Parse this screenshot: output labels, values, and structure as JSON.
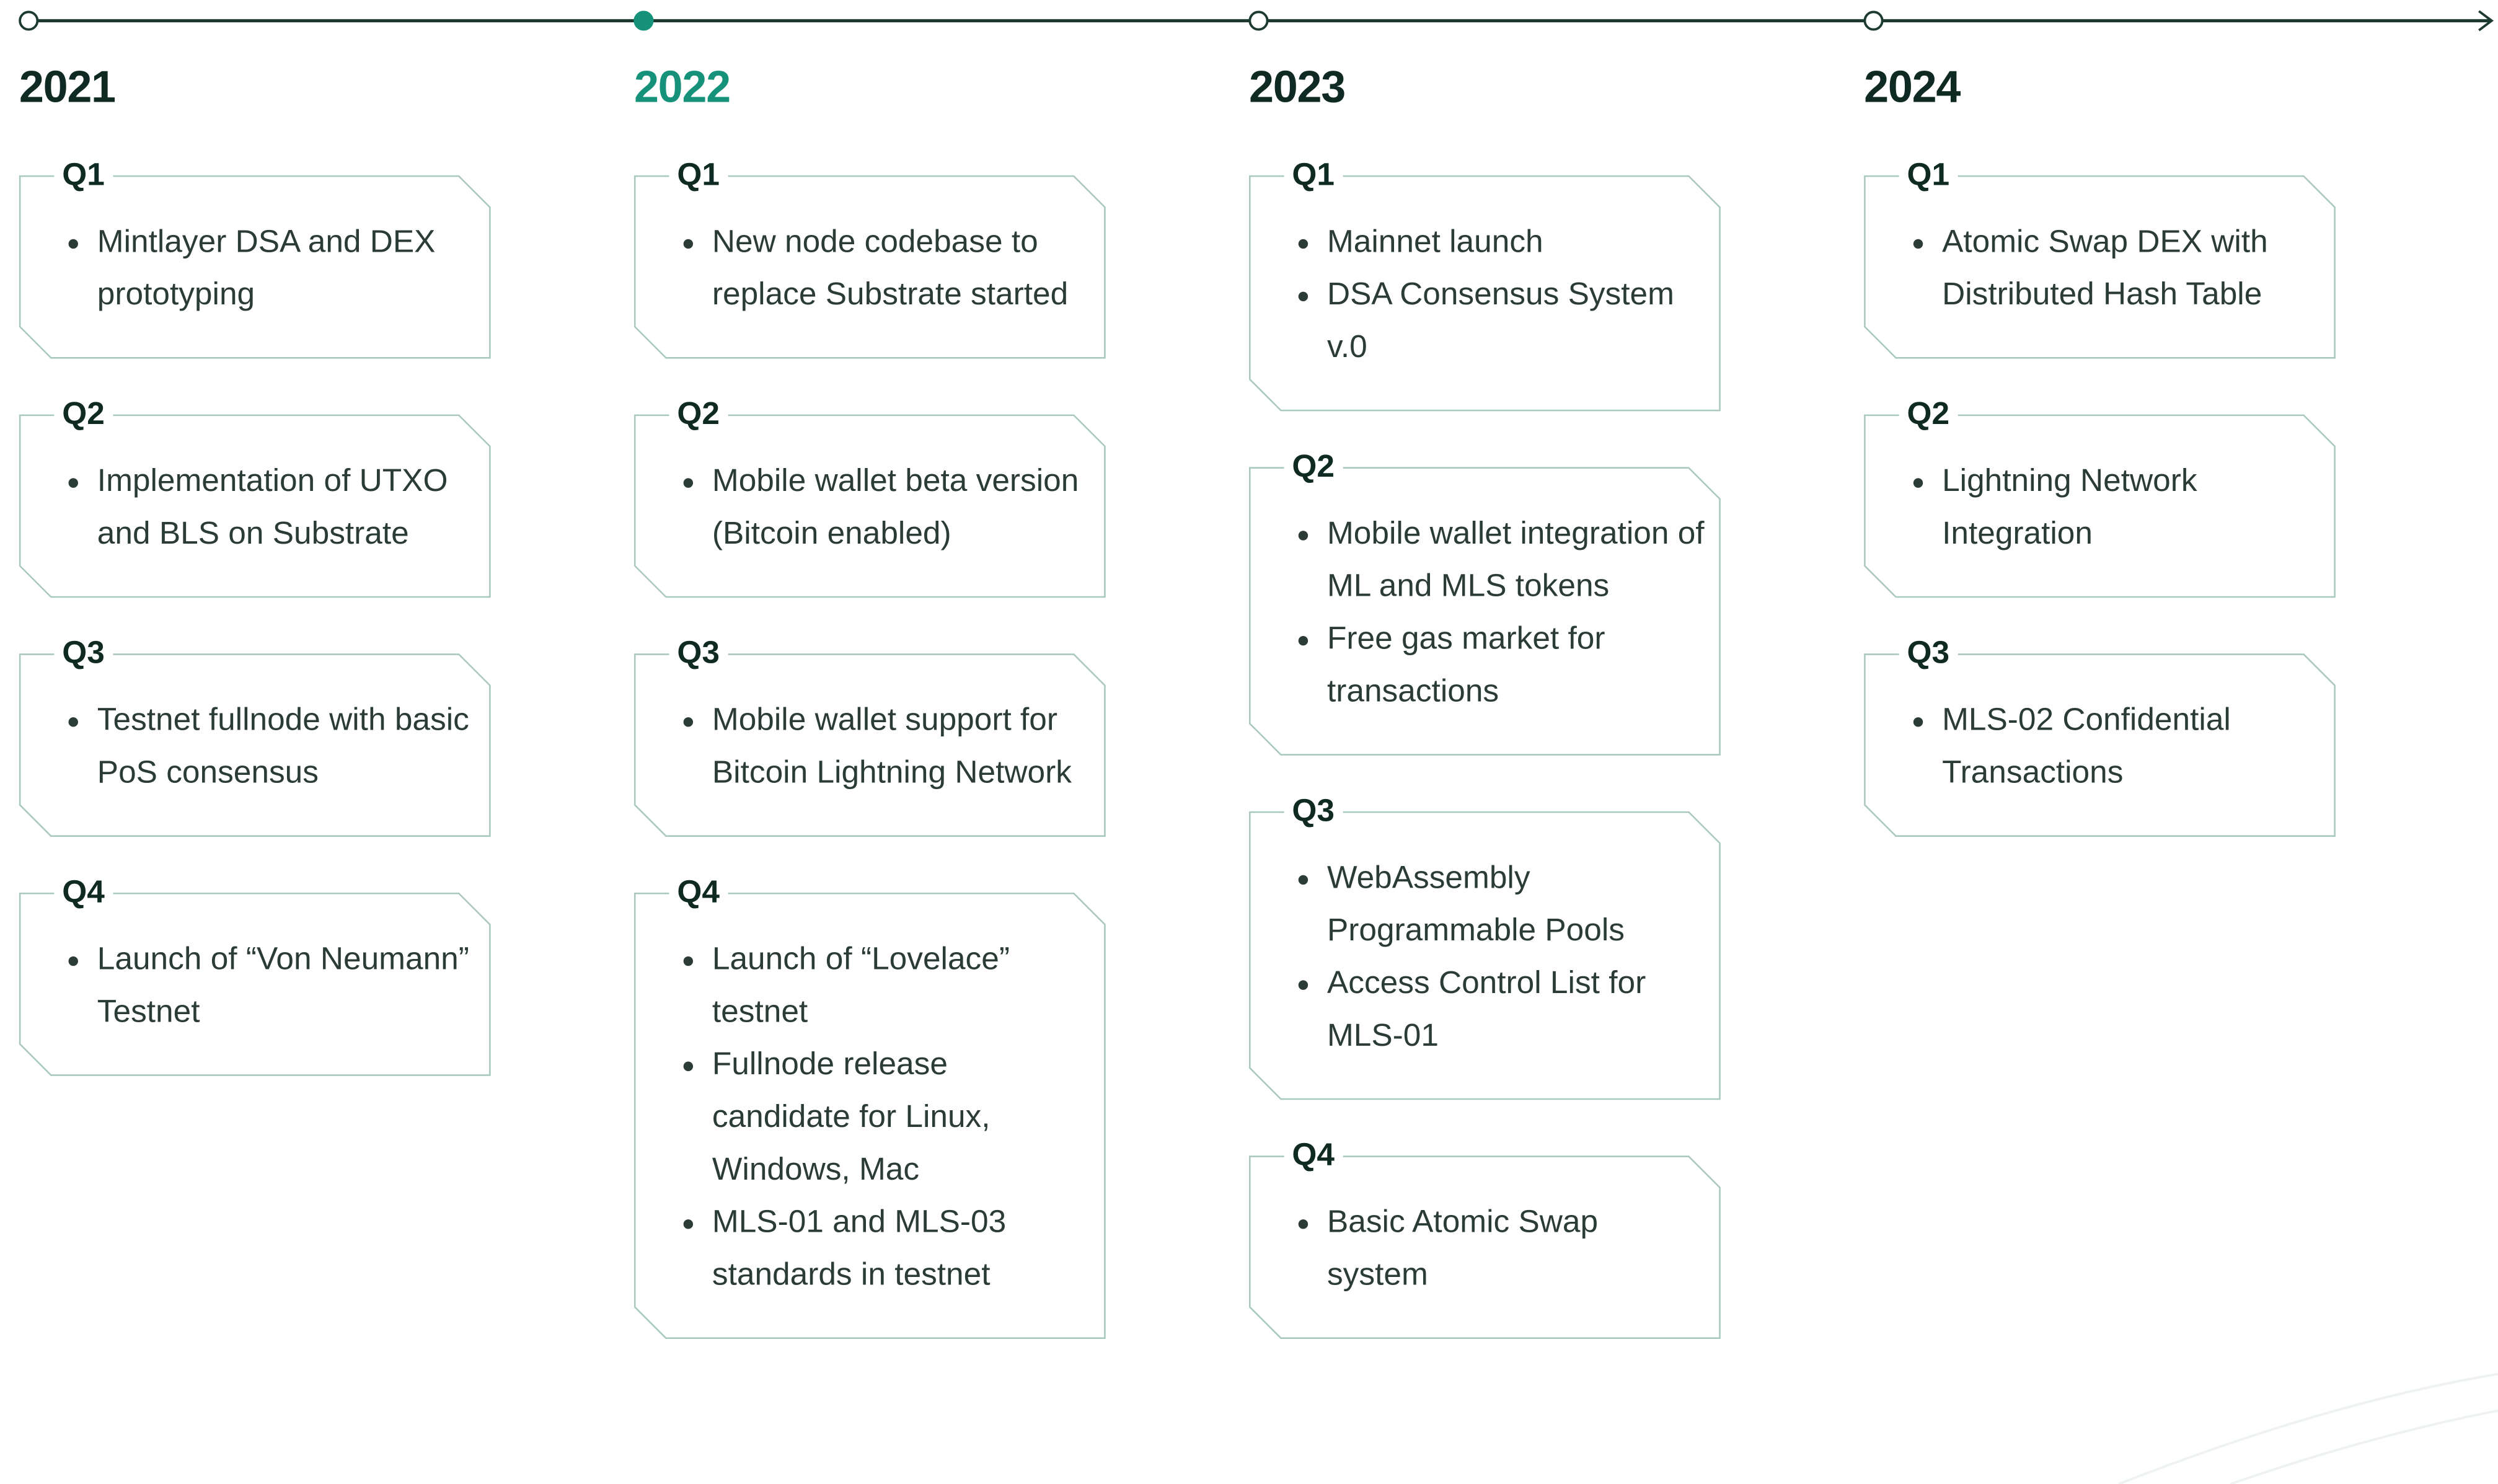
{
  "timeline": [
    {
      "year": "2021",
      "quarters": [
        {
          "label": "Q1",
          "items": [
            "Mintlayer DSA and DEX prototyping"
          ]
        },
        {
          "label": "Q2",
          "items": [
            "Implementation of UTXO and BLS on Substrate"
          ]
        },
        {
          "label": "Q3",
          "items": [
            "Testnet fullnode with basic PoS consensus"
          ]
        },
        {
          "label": "Q4",
          "items": [
            "Launch of “Von Neumann” Testnet"
          ]
        }
      ]
    },
    {
      "year": "2022",
      "current": true,
      "quarters": [
        {
          "label": "Q1",
          "items": [
            "New node codebase to replace Substrate started"
          ]
        },
        {
          "label": "Q2",
          "items": [
            "Mobile wallet beta version (Bitcoin enabled)"
          ]
        },
        {
          "label": "Q3",
          "items": [
            "Mobile wallet support for Bitcoin Lightning Network"
          ]
        },
        {
          "label": "Q4",
          "items": [
            "Launch of “Lovelace” testnet",
            "Fullnode release candidate for Linux, Windows, Mac",
            "MLS-01 and MLS-03 standards in testnet"
          ]
        }
      ]
    },
    {
      "year": "2023",
      "quarters": [
        {
          "label": "Q1",
          "items": [
            "Mainnet launch",
            "DSA Consensus System v.0"
          ]
        },
        {
          "label": "Q2",
          "items": [
            "Mobile wallet integration of ML and MLS tokens",
            "Free gas market for transactions"
          ]
        },
        {
          "label": "Q3",
          "items": [
            "WebAssembly Programmable Pools",
            "Access Control List for MLS-01"
          ]
        },
        {
          "label": "Q4",
          "items": [
            "Basic Atomic Swap system"
          ]
        }
      ]
    },
    {
      "year": "2024",
      "quarters": [
        {
          "label": "Q1",
          "items": [
            "Atomic Swap DEX with Distributed Hash Table"
          ]
        },
        {
          "label": "Q2",
          "items": [
            "Lightning Network Integration"
          ]
        },
        {
          "label": "Q3",
          "items": [
            "MLS-02 Confidential Transactions"
          ]
        }
      ]
    }
  ]
}
